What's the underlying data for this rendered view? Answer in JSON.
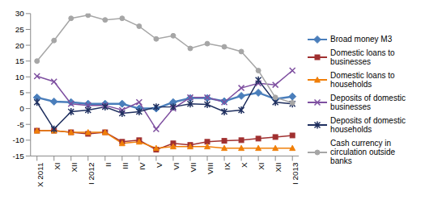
{
  "chart_data": {
    "type": "line",
    "categories": [
      "X 2011",
      "XI",
      "XII",
      "I 2012",
      "II",
      "III",
      "IV",
      "V",
      "VI",
      "VII",
      "VIII",
      "IX",
      "X",
      "XI",
      "XII",
      "I 2013"
    ],
    "series": [
      {
        "name": "Broad money M3",
        "color": "#4a7ebb",
        "marker": "diamond",
        "values": [
          3.5,
          2.2,
          2,
          1.5,
          1.5,
          1.5,
          0,
          0,
          2,
          3.3,
          3.3,
          2.3,
          4,
          5,
          3,
          3.8
        ]
      },
      {
        "name": "Domestic loans to businesses",
        "color": "#a03030",
        "marker": "square",
        "values": [
          -7,
          -7,
          -7.5,
          -8,
          -7.5,
          -10.5,
          -10,
          -13,
          -11,
          -11.5,
          -10.5,
          -10.2,
          -10,
          -9.5,
          -9,
          -8.5
        ]
      },
      {
        "name": "Domestic loans to households",
        "color": "#f07f09",
        "marker": "triangle",
        "values": [
          -7,
          -7,
          -7.5,
          -7.5,
          -7.5,
          -11,
          -10.5,
          -12.5,
          -12,
          -12,
          -12,
          -12.5,
          -12.5,
          -12.5,
          -12.5,
          -12.5
        ]
      },
      {
        "name": "Deposits of domestic businesses",
        "color": "#7e4fa0",
        "marker": "x",
        "values": [
          10.2,
          8.5,
          1.5,
          1,
          1,
          -0.5,
          2,
          -6.5,
          0,
          3.5,
          3.5,
          2,
          6.5,
          8,
          7.5,
          12
        ]
      },
      {
        "name": "Deposits of domestic households",
        "color": "#1f2f5f",
        "marker": "star",
        "values": [
          2,
          -6.5,
          -1,
          -0.5,
          0.5,
          -1.5,
          -1,
          0.5,
          0.5,
          1.5,
          1.3,
          -1,
          -0.5,
          9,
          2,
          1.5
        ]
      },
      {
        "name": "Cash currency in circulation outside banks",
        "color": "#a6a6a6",
        "marker": "circle",
        "values": [
          15,
          21.5,
          28.5,
          29.5,
          28,
          28.5,
          26,
          22,
          23,
          19,
          20.5,
          19.5,
          18,
          12,
          3.5,
          1.8
        ]
      }
    ],
    "ylim": [
      -15,
      30
    ],
    "yticks": [
      -15,
      -10,
      -5,
      0,
      5,
      10,
      15,
      20,
      25,
      30
    ],
    "grid": false,
    "legend": "right"
  }
}
